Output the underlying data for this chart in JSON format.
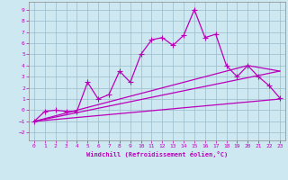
{
  "xlabel": "Windchill (Refroidissement éolien,°C)",
  "xlim": [
    -0.5,
    23.5
  ],
  "ylim": [
    -2.7,
    9.7
  ],
  "yticks": [
    -2,
    -1,
    0,
    1,
    2,
    3,
    4,
    5,
    6,
    7,
    8,
    9
  ],
  "xticks": [
    0,
    1,
    2,
    3,
    4,
    5,
    6,
    7,
    8,
    9,
    10,
    11,
    12,
    13,
    14,
    15,
    16,
    17,
    18,
    19,
    20,
    21,
    22,
    23
  ],
  "bg_color": "#cde8f0",
  "line_color": "#bb00bb",
  "grid_color": "#99bbcc",
  "main_x": [
    0,
    1,
    2,
    3,
    4,
    5,
    6,
    7,
    8,
    9,
    10,
    11,
    12,
    13,
    14,
    15,
    16,
    17,
    18,
    19,
    20,
    21,
    22,
    23
  ],
  "main_y": [
    -1.0,
    -0.1,
    -0.0,
    -0.1,
    -0.1,
    2.5,
    1.0,
    1.4,
    3.5,
    2.5,
    5.0,
    6.3,
    6.5,
    5.8,
    6.7,
    9.0,
    6.5,
    6.8,
    4.0,
    3.0,
    4.0,
    3.0,
    2.2,
    1.1
  ],
  "line2_x": [
    0,
    23
  ],
  "line2_y": [
    -1.0,
    1.0
  ],
  "line3_x": [
    0,
    23
  ],
  "line3_y": [
    -1.0,
    3.5
  ],
  "line4_x": [
    0,
    20,
    23
  ],
  "line4_y": [
    -1.0,
    4.0,
    3.5
  ]
}
